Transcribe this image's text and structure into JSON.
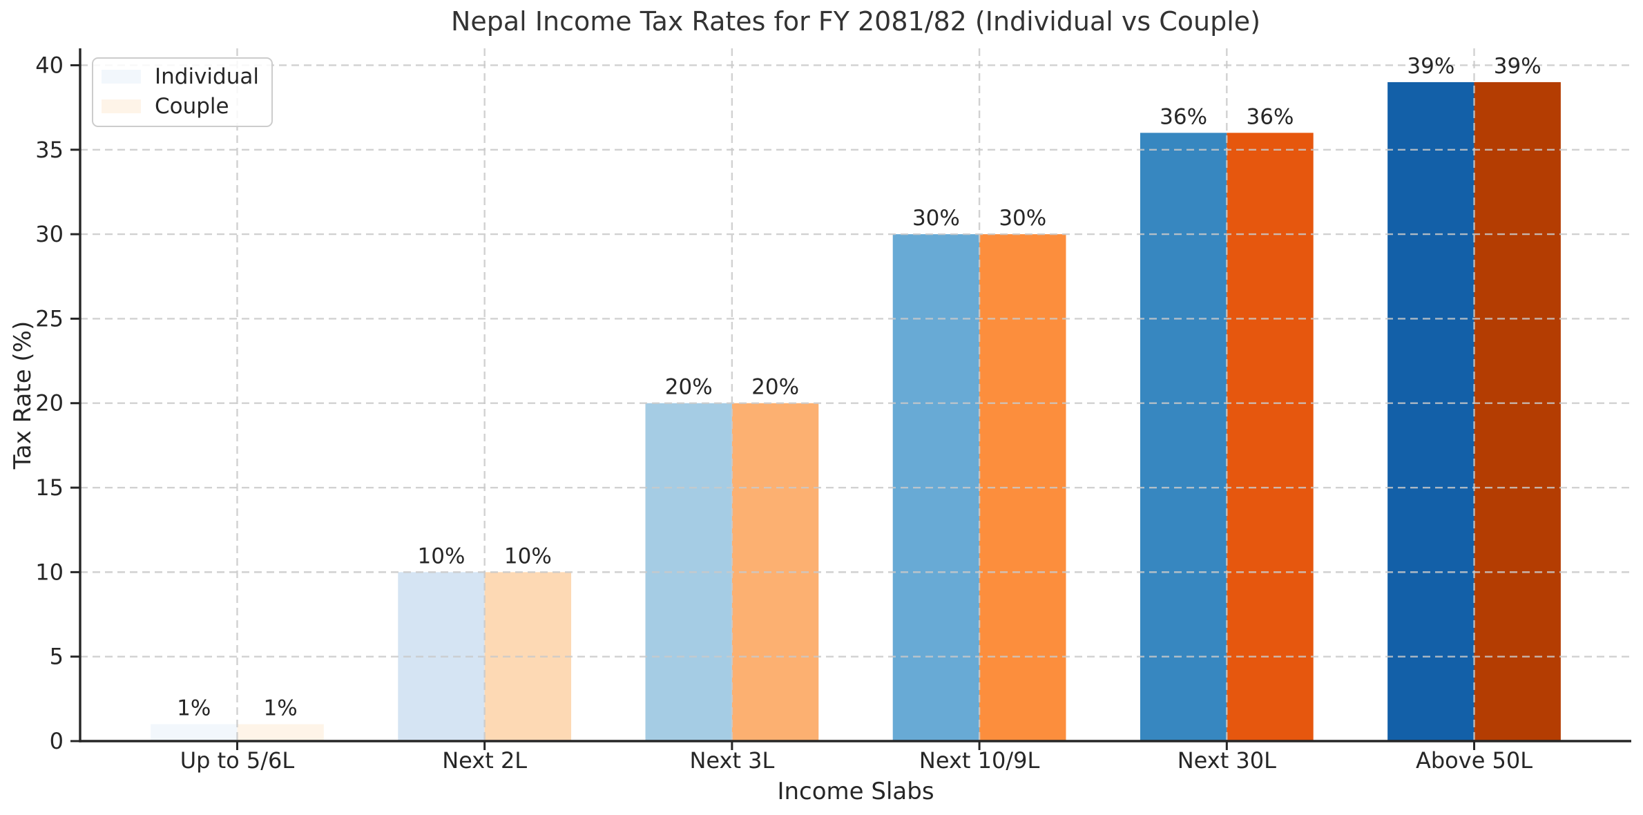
{
  "chart_data": {
    "type": "bar",
    "title": "Nepal Income Tax Rates for FY 2081/82 (Individual vs Couple)",
    "xlabel": "Income Slabs",
    "ylabel": "Tax Rate (%)",
    "categories": [
      "Up to 5/6L",
      "Next 2L",
      "Next 3L",
      "Next 10/9L",
      "Next 30L",
      "Above 50L"
    ],
    "series": [
      {
        "name": "Individual",
        "values": [
          1,
          10,
          20,
          30,
          36,
          39
        ],
        "labels": [
          "1%",
          "10%",
          "20%",
          "30%",
          "36%",
          "39%"
        ],
        "palette": [
          "#f2f7fc",
          "#d5e4f3",
          "#a5cce4",
          "#68aad5",
          "#3787c0",
          "#1360a8"
        ]
      },
      {
        "name": "Couple",
        "values": [
          1,
          10,
          20,
          30,
          36,
          39
        ],
        "labels": [
          "1%",
          "10%",
          "20%",
          "30%",
          "36%",
          "39%"
        ],
        "palette": [
          "#fef4e8",
          "#fdd9b4",
          "#fcb071",
          "#fc8e3d",
          "#e6570e",
          "#b43d02"
        ]
      }
    ],
    "yticks": [
      0,
      5,
      10,
      15,
      20,
      25,
      30,
      35,
      40
    ],
    "ylim": [
      0,
      41
    ],
    "xlim": [
      -0.635,
      5.635
    ],
    "bar_width_units": 0.35,
    "grid": true,
    "grid_style": "dashed",
    "legend_position": "upper left",
    "colors": {
      "text": "#262626",
      "title_text": "#333333",
      "spine": "#262626",
      "grid": "#c9c9c9",
      "background": "#ffffff",
      "legend_border": "#cccccc"
    }
  }
}
